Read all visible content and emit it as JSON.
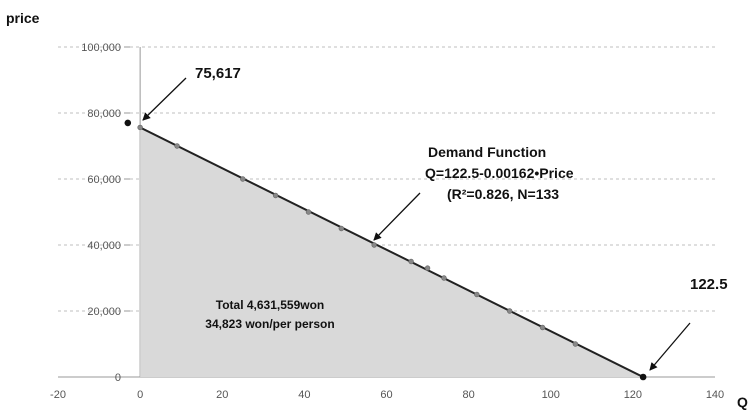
{
  "chart_data": {
    "type": "area",
    "xlabel": "Q",
    "ylabel": "price",
    "xlim": [
      -20,
      140
    ],
    "ylim": [
      0,
      100000
    ],
    "x_ticks": [
      "-20",
      "0",
      "20",
      "40",
      "60",
      "80",
      "100",
      "120",
      "140"
    ],
    "y_ticks": [
      "0",
      "20,000",
      "40,000",
      "60,000",
      "80,000",
      "100,000"
    ],
    "grid": "horizontal-dashed",
    "colors": {
      "fill": "#d9d9d9",
      "line": "#222222",
      "point": "#888888"
    },
    "demand_line": {
      "x": [
        0,
        122.5
      ],
      "y": [
        75617,
        0
      ]
    },
    "points": [
      {
        "x": -3,
        "y": 77000
      },
      {
        "x": 0,
        "y": 75617
      },
      {
        "x": 9,
        "y": 70000
      },
      {
        "x": 25,
        "y": 60000
      },
      {
        "x": 33,
        "y": 55000
      },
      {
        "x": 41,
        "y": 50000
      },
      {
        "x": 49,
        "y": 45000
      },
      {
        "x": 57,
        "y": 40000
      },
      {
        "x": 66,
        "y": 35000
      },
      {
        "x": 70,
        "y": 33000
      },
      {
        "x": 74,
        "y": 30000
      },
      {
        "x": 82,
        "y": 25000
      },
      {
        "x": 90,
        "y": 20000
      },
      {
        "x": 98,
        "y": 15000
      },
      {
        "x": 106,
        "y": 10000
      },
      {
        "x": 122.5,
        "y": 0
      }
    ],
    "annotations": {
      "intercept_y": "75,617",
      "intercept_x": "122.5",
      "demand_title": "Demand Function",
      "demand_equation": "Q=122.5-0.00162•Price",
      "demand_stats": "(R²=0.826, N=133",
      "total": "Total 4,631,559won",
      "per_person": "34,823 won/per person"
    }
  }
}
